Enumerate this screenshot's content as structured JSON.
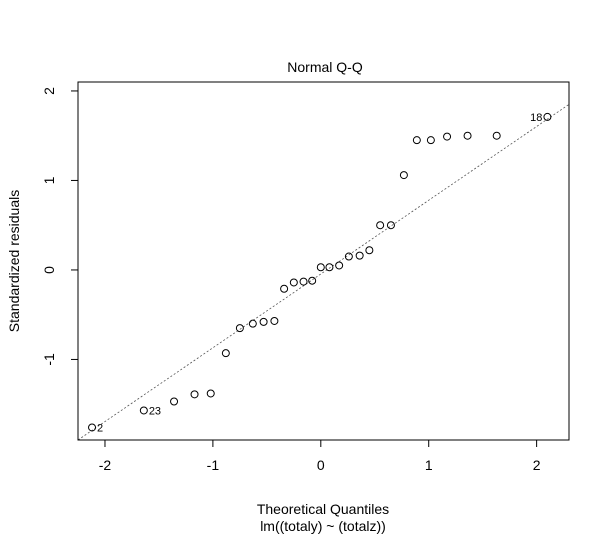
{
  "chart_data": {
    "type": "scatter",
    "title": "Normal Q-Q",
    "xlabel": "Theoretical Quantiles",
    "xlabel_sub": "lm((totaly) ~ (totalz))",
    "ylabel": "Standardized residuals",
    "xlim": [
      -2.25,
      2.3
    ],
    "ylim": [
      -1.9,
      2.1
    ],
    "x_ticks": [
      -2,
      -1,
      0,
      1,
      2
    ],
    "x_tick_labels": [
      "-2",
      "-1",
      "0",
      "1",
      "2"
    ],
    "y_ticks": [
      -1,
      0,
      1,
      2
    ],
    "y_tick_labels": [
      "-1",
      "0",
      "1",
      "2"
    ],
    "grid": false,
    "reference_line": {
      "style": "dotted",
      "from": [
        -2.25,
        -1.9
      ],
      "to": [
        2.3,
        1.85
      ]
    },
    "points": [
      {
        "x": -2.12,
        "y": -1.76
      },
      {
        "x": -1.64,
        "y": -1.57
      },
      {
        "x": -1.36,
        "y": -1.47
      },
      {
        "x": -1.17,
        "y": -1.39
      },
      {
        "x": -1.02,
        "y": -1.38
      },
      {
        "x": -0.88,
        "y": -0.93
      },
      {
        "x": -0.75,
        "y": -0.65
      },
      {
        "x": -0.63,
        "y": -0.6
      },
      {
        "x": -0.53,
        "y": -0.58
      },
      {
        "x": -0.43,
        "y": -0.57
      },
      {
        "x": -0.34,
        "y": -0.21
      },
      {
        "x": -0.25,
        "y": -0.14
      },
      {
        "x": -0.16,
        "y": -0.13
      },
      {
        "x": -0.08,
        "y": -0.12
      },
      {
        "x": 0.0,
        "y": 0.03
      },
      {
        "x": 0.08,
        "y": 0.03
      },
      {
        "x": 0.17,
        "y": 0.05
      },
      {
        "x": 0.26,
        "y": 0.15
      },
      {
        "x": 0.36,
        "y": 0.16
      },
      {
        "x": 0.45,
        "y": 0.22
      },
      {
        "x": 0.55,
        "y": 0.5
      },
      {
        "x": 0.65,
        "y": 0.5
      },
      {
        "x": 0.77,
        "y": 1.06
      },
      {
        "x": 0.89,
        "y": 1.45
      },
      {
        "x": 1.02,
        "y": 1.45
      },
      {
        "x": 1.17,
        "y": 1.49
      },
      {
        "x": 1.36,
        "y": 1.5
      },
      {
        "x": 1.63,
        "y": 1.5
      },
      {
        "x": 2.1,
        "y": 1.71
      }
    ],
    "point_labels": [
      {
        "text": "2",
        "x": -2.12,
        "y": -1.76,
        "side": "right"
      },
      {
        "text": "23",
        "x": -1.64,
        "y": -1.57,
        "side": "right"
      },
      {
        "text": "18",
        "x": 2.1,
        "y": 1.71,
        "side": "left"
      }
    ]
  }
}
